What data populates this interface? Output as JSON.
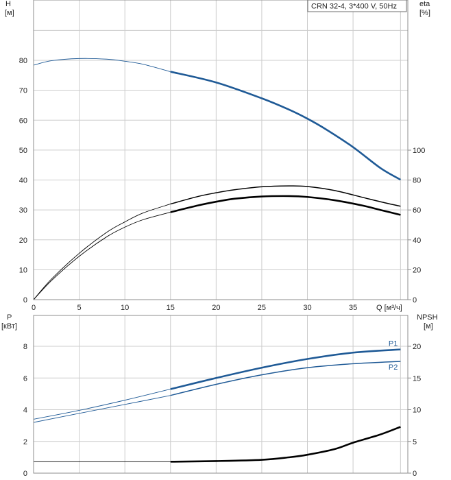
{
  "legend_box": {
    "text": "CRN 32-4, 3*400 V, 50Hz"
  },
  "colors": {
    "blue": "#1f5a96",
    "black": "#000000",
    "grid": "#cccccc"
  },
  "chart_data": [
    {
      "type": "line",
      "name": "head-efficiency",
      "x_title": "Q [м³/ч]",
      "y_left_title": [
        "H",
        "[м]"
      ],
      "y_right_title": [
        "eta",
        "[%]"
      ],
      "xlim": [
        0,
        41
      ],
      "ylim_left": [
        0,
        90
      ],
      "ylim_right": [
        0,
        180
      ],
      "x_ticks": [
        0,
        5,
        10,
        15,
        20,
        25,
        30,
        35
      ],
      "y_left_ticks": [
        0,
        10,
        20,
        30,
        40,
        50,
        60,
        70,
        80
      ],
      "y_right_ticks": [
        0,
        20,
        40,
        60,
        80,
        100
      ],
      "grid": true,
      "series": [
        {
          "axis": "left",
          "color": "#1f5a96",
          "thin": [
            [
              0,
              78.4
            ],
            [
              2,
              79.9
            ],
            [
              5,
              80.6
            ],
            [
              8,
              80.4
            ],
            [
              10,
              79.7
            ],
            [
              12,
              78.7
            ],
            [
              15,
              76.2
            ]
          ],
          "thick": [
            [
              15,
              76.2
            ],
            [
              20,
              72.6
            ],
            [
              25,
              67.3
            ],
            [
              28,
              63.5
            ],
            [
              30,
              60.5
            ],
            [
              32,
              57.0
            ],
            [
              35,
              51.0
            ],
            [
              38,
              44.0
            ],
            [
              40.2,
              40.1
            ]
          ]
        },
        {
          "axis": "right",
          "color": "#000000",
          "thin": [
            [
              0,
              0
            ],
            [
              2,
              14
            ],
            [
              5,
              31
            ],
            [
              8,
              45
            ],
            [
              10,
              52
            ],
            [
              12,
              58
            ],
            [
              15,
              64
            ]
          ],
          "thick": [
            [
              15,
              64
            ],
            [
              18,
              69
            ],
            [
              20,
              71.5
            ],
            [
              22,
              73.5
            ],
            [
              25,
              75.5
            ],
            [
              28,
              76.1
            ],
            [
              30,
              75.7
            ],
            [
              33,
              73
            ],
            [
              36,
              68.5
            ],
            [
              38,
              65.5
            ],
            [
              40.2,
              62.5
            ]
          ]
        },
        {
          "axis": "right",
          "color": "#000000",
          "thin": [
            [
              0,
              0
            ],
            [
              2,
              13
            ],
            [
              5,
              29
            ],
            [
              8,
              42
            ],
            [
              10,
              48.5
            ],
            [
              12,
              53.5
            ],
            [
              15,
              58.5
            ]
          ],
          "thick": [
            [
              15,
              58.5
            ],
            [
              18,
              63
            ],
            [
              20,
              65.5
            ],
            [
              22,
              67.5
            ],
            [
              25,
              69
            ],
            [
              28,
              69.3
            ],
            [
              30,
              68.7
            ],
            [
              33,
              66.5
            ],
            [
              36,
              63
            ],
            [
              38,
              60
            ],
            [
              40.2,
              56.7
            ]
          ]
        }
      ]
    },
    {
      "type": "line",
      "name": "power-npsh",
      "y_left_title": [
        "P",
        "[кВт]"
      ],
      "y_right_title": [
        "NPSH",
        "[м]"
      ],
      "xlim": [
        0,
        41
      ],
      "ylim_left": [
        0,
        9.4
      ],
      "ylim_right": [
        0,
        23.5
      ],
      "y_left_ticks": [
        0,
        2,
        4,
        6,
        8
      ],
      "y_right_ticks": [
        0,
        5,
        10,
        15,
        20
      ],
      "grid": true,
      "series": [
        {
          "name": "P1",
          "axis": "left",
          "color": "#1f5a96",
          "thin": [
            [
              0,
              3.4
            ],
            [
              5,
              3.96
            ],
            [
              10,
              4.6
            ],
            [
              15,
              5.3
            ]
          ],
          "thick": [
            [
              15,
              5.3
            ],
            [
              20,
              6.0
            ],
            [
              25,
              6.65
            ],
            [
              30,
              7.2
            ],
            [
              35,
              7.6
            ],
            [
              40.2,
              7.8
            ]
          ]
        },
        {
          "name": "P2",
          "axis": "left",
          "color": "#1f5a96",
          "thin": [
            [
              0,
              3.2
            ],
            [
              5,
              3.77
            ],
            [
              10,
              4.33
            ],
            [
              15,
              4.9
            ]
          ],
          "thick": [
            [
              15,
              4.9
            ],
            [
              20,
              5.6
            ],
            [
              25,
              6.2
            ],
            [
              30,
              6.65
            ],
            [
              35,
              6.9
            ],
            [
              40.2,
              7.05
            ]
          ]
        },
        {
          "axis": "right",
          "color": "#000000",
          "thin": [
            [
              0,
              1.8
            ],
            [
              15,
              1.8
            ]
          ],
          "thick": [
            [
              15,
              1.8
            ],
            [
              20,
              1.9
            ],
            [
              25,
              2.1
            ],
            [
              28,
              2.5
            ],
            [
              30,
              2.9
            ],
            [
              33,
              3.8
            ],
            [
              35,
              4.8
            ],
            [
              38,
              6.1
            ],
            [
              40.2,
              7.3
            ]
          ]
        }
      ]
    }
  ]
}
